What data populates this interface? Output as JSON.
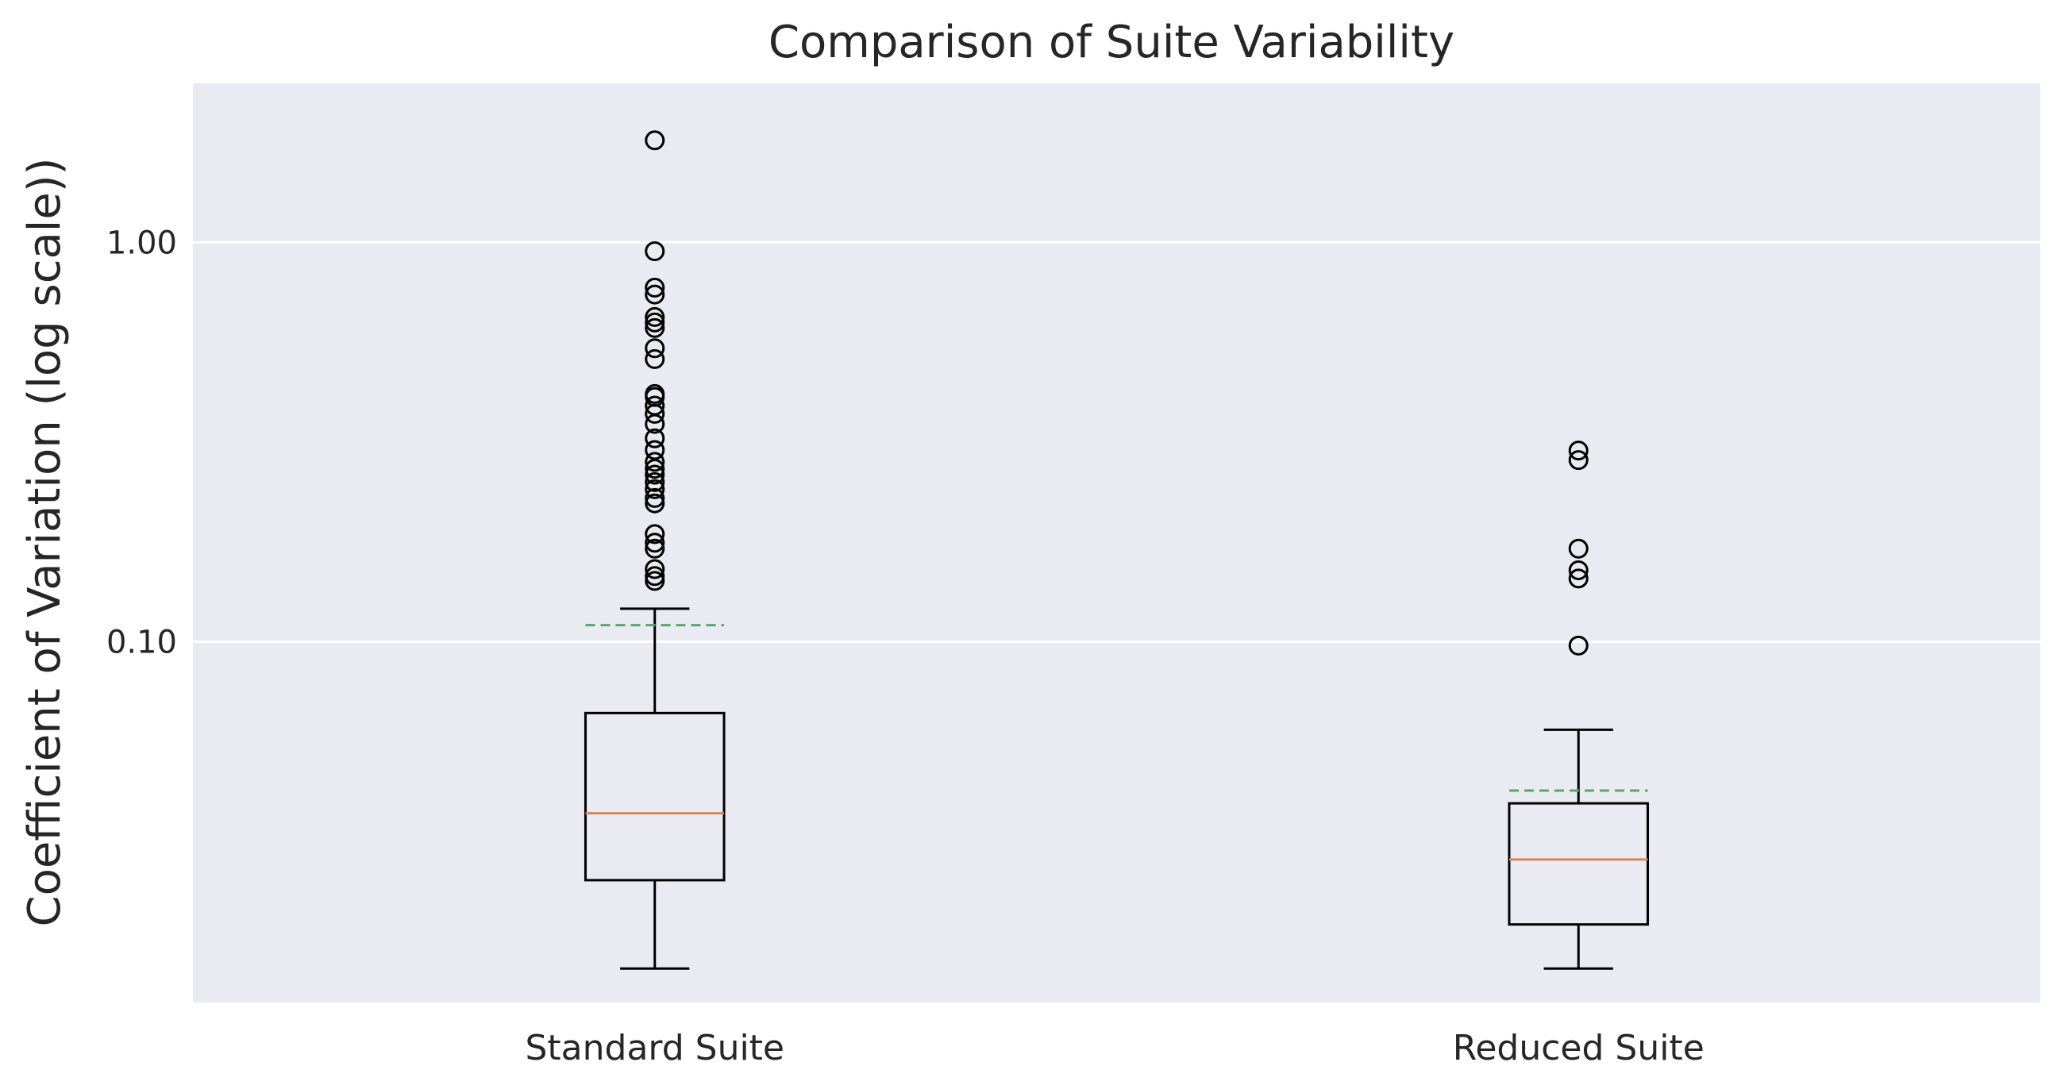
{
  "chart_data": {
    "type": "box",
    "title": "Comparison of Suite Variability",
    "xlabel": "",
    "ylabel": "Coefficient of Variation (log scale))",
    "y_scale": "log",
    "ylim": [
      0.0125,
      2.5
    ],
    "y_ticks": [
      {
        "value": 0.1,
        "label": "0.10"
      },
      {
        "value": 1.0,
        "label": "1.00"
      }
    ],
    "grid": "horizontal",
    "categories": [
      "Standard Suite",
      "Reduced Suite"
    ],
    "boxes": [
      {
        "category": "Standard Suite",
        "whisker_low": 0.0152,
        "q1": 0.0253,
        "median": 0.0372,
        "q3": 0.0663,
        "whisker_high": 0.121,
        "mean": 0.11,
        "outliers": [
          0.142,
          0.146,
          0.152,
          0.171,
          0.177,
          0.186,
          0.222,
          0.229,
          0.241,
          0.251,
          0.262,
          0.271,
          0.282,
          0.302,
          0.323,
          0.351,
          0.372,
          0.39,
          0.41,
          0.417,
          0.51,
          0.543,
          0.61,
          0.63,
          0.65,
          0.74,
          0.77,
          0.95,
          1.8
        ]
      },
      {
        "category": "Reduced Suite",
        "whisker_low": 0.0152,
        "q1": 0.0196,
        "median": 0.0285,
        "q3": 0.0394,
        "whisker_high": 0.0602,
        "mean": 0.0424,
        "outliers": [
          0.0978,
          0.144,
          0.151,
          0.171,
          0.285,
          0.301
        ]
      }
    ],
    "colors": {
      "plot_background": "#eaeaf2",
      "grid": "#ffffff",
      "box": "#000000",
      "median": "#dd8452",
      "mean": "#55a868"
    }
  }
}
